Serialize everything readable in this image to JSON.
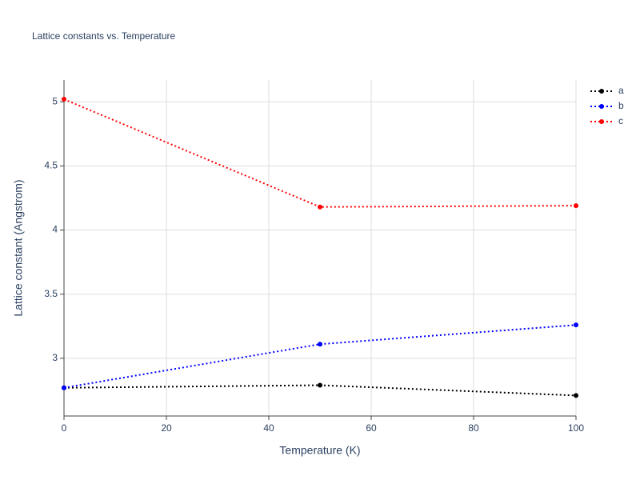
{
  "chart_data": {
    "type": "line",
    "title": "Lattice constants vs. Temperature",
    "x_label": "Temperature (K)",
    "y_label": "Lattice constant (Angstrom)",
    "x": [
      0,
      50,
      100
    ],
    "series": [
      {
        "name": "a",
        "color": "#000000",
        "values": [
          2.77,
          2.79,
          2.71
        ]
      },
      {
        "name": "b",
        "color": "#0000ff",
        "values": [
          2.77,
          3.11,
          3.26
        ]
      },
      {
        "name": "c",
        "color": "#ff0000",
        "values": [
          5.02,
          4.18,
          4.19
        ]
      }
    ],
    "xlim": [
      0,
      100
    ],
    "xticks": [
      0,
      20,
      40,
      60,
      80,
      100
    ],
    "ylim": [
      2.55,
      5.17
    ],
    "yticks": [
      3,
      3.5,
      4,
      4.5,
      5
    ],
    "grid": true,
    "legend": "top-right"
  }
}
